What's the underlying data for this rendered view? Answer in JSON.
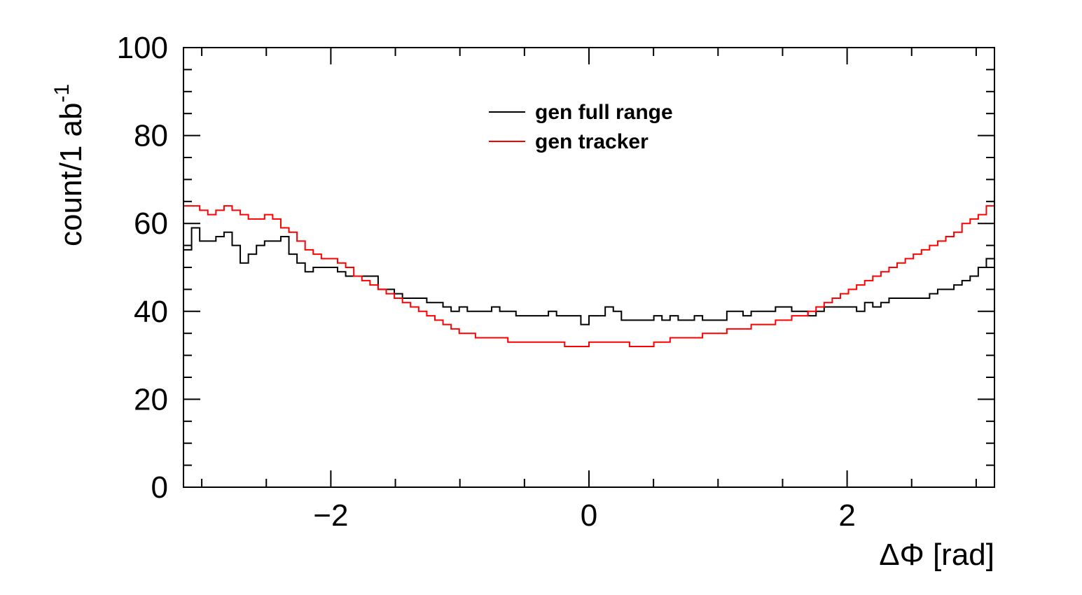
{
  "chart_data": {
    "type": "line",
    "style": "step-histogram",
    "xlabel": "ΔΦ [rad]",
    "ylabel_main": "count/1 ab",
    "ylabel_sup": "-1",
    "xlim": [
      -3.14159,
      3.14159
    ],
    "ylim": [
      0,
      100
    ],
    "x_ticks": [
      -2,
      0,
      2
    ],
    "x_tick_labels": [
      "−2",
      "0",
      "2"
    ],
    "y_ticks": [
      0,
      20,
      40,
      60,
      80,
      100
    ],
    "y_tick_labels": [
      "0",
      "20",
      "40",
      "60",
      "80",
      "100"
    ],
    "grid": false,
    "legend_position": "top-center",
    "bin_count": 100,
    "series": [
      {
        "name": "gen full range",
        "color": "#000000",
        "values": [
          54,
          59,
          56,
          56,
          57,
          58,
          55,
          51,
          53,
          55,
          56,
          56,
          57,
          53,
          51,
          49,
          50,
          50,
          50,
          49,
          48,
          48,
          48,
          48,
          45,
          45,
          44,
          43,
          43,
          43,
          42,
          42,
          41,
          40,
          41,
          40,
          40,
          40,
          41,
          40,
          40,
          39,
          39,
          39,
          39,
          40,
          39,
          39,
          39,
          37,
          39,
          39,
          41,
          40,
          38,
          38,
          38,
          38,
          39,
          38,
          39,
          38,
          38,
          39,
          38,
          38,
          38,
          40,
          40,
          39,
          40,
          40,
          40,
          41,
          41,
          40,
          40,
          39,
          40,
          41,
          41,
          41,
          41,
          40,
          42,
          41,
          42,
          43,
          43,
          43,
          43,
          43,
          44,
          45,
          45,
          46,
          47,
          48,
          50,
          52
        ]
      },
      {
        "name": "gen tracker",
        "color": "#ff0000",
        "values": [
          64,
          64,
          63,
          62,
          63,
          64,
          63,
          62,
          61,
          61,
          62,
          61,
          59,
          58,
          56,
          54,
          53,
          52,
          52,
          51,
          50,
          48,
          47,
          46,
          45,
          44,
          43,
          42,
          41,
          40,
          39,
          38,
          37,
          36,
          35,
          35,
          34,
          34,
          34,
          34,
          33,
          33,
          33,
          33,
          33,
          33,
          33,
          32,
          32,
          32,
          33,
          33,
          33,
          33,
          33,
          32,
          32,
          32,
          33,
          33,
          34,
          34,
          34,
          34,
          35,
          35,
          35,
          36,
          36,
          36,
          37,
          37,
          37,
          38,
          38,
          39,
          39,
          40,
          41,
          42,
          43,
          44,
          45,
          46,
          47,
          48,
          49,
          50,
          51,
          52,
          53,
          54,
          55,
          56,
          57,
          58,
          60,
          61,
          62,
          64
        ]
      }
    ]
  }
}
